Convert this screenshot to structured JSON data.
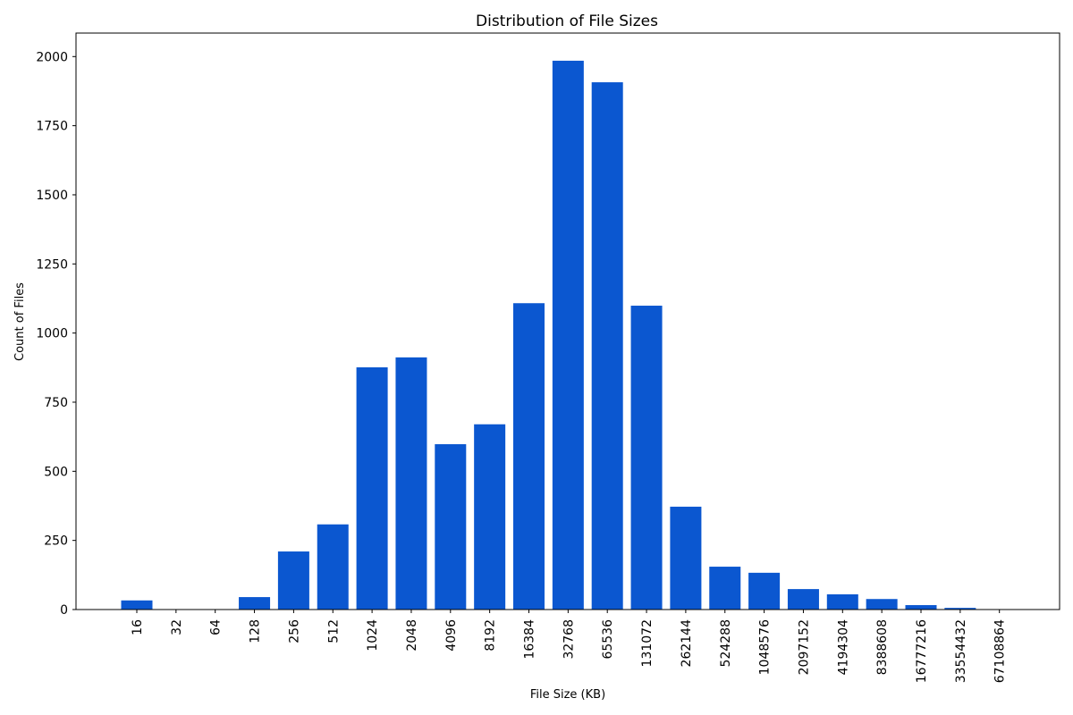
{
  "chart_data": {
    "type": "bar",
    "title": "Distribution of File Sizes",
    "xlabel": "File Size (KB)",
    "ylabel": "Count of Files",
    "categories": [
      "16",
      "32",
      "64",
      "128",
      "256",
      "512",
      "1024",
      "2048",
      "4096",
      "8192",
      "16384",
      "32768",
      "65536",
      "131072",
      "262144",
      "524288",
      "1048576",
      "2097152",
      "4194304",
      "8388608",
      "16777216",
      "33554432",
      "67108864"
    ],
    "values": [
      33,
      0,
      0,
      45,
      210,
      308,
      876,
      912,
      598,
      670,
      1108,
      1985,
      1907,
      1099,
      372,
      155,
      133,
      74,
      55,
      38,
      16,
      6,
      1
    ],
    "ylim": [
      0,
      2085
    ],
    "yticks": [
      0,
      250,
      500,
      750,
      1000,
      1250,
      1500,
      1750,
      2000
    ],
    "bar_color": "#0b57d0",
    "grid": false,
    "legend": "none"
  }
}
